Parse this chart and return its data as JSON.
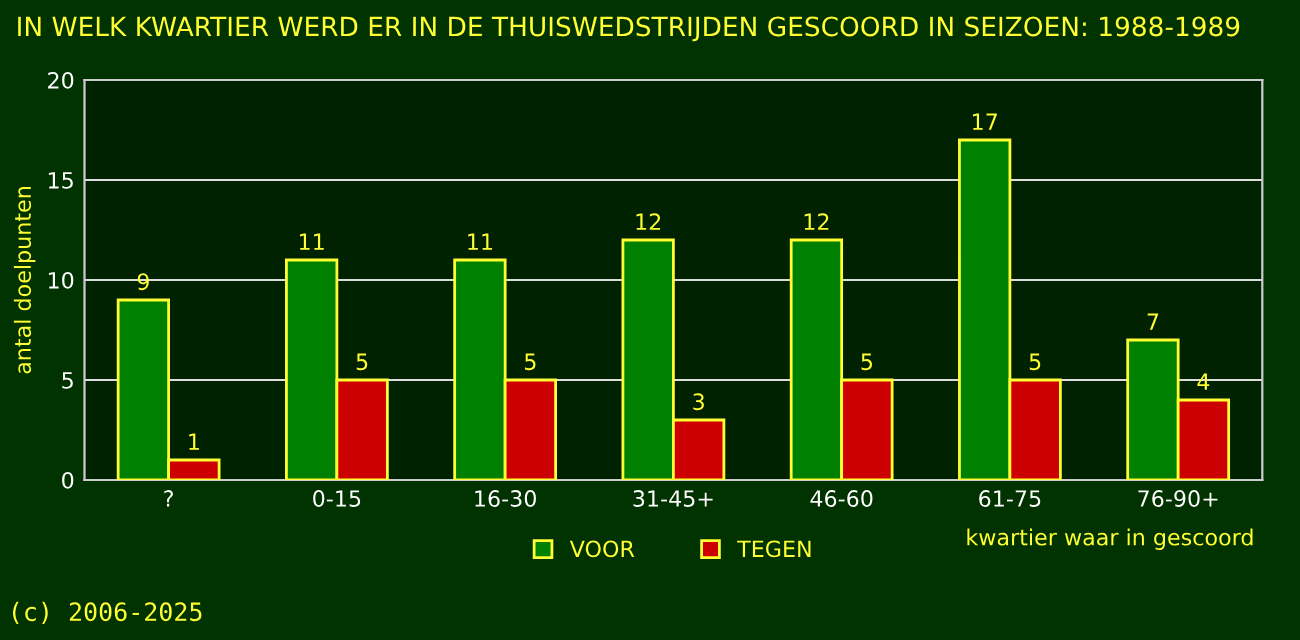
{
  "chart_data": {
    "type": "bar",
    "title": "IN WELK KWARTIER WERD ER IN DE THUISWEDSTRIJDEN GESCOORD IN SEIZOEN: 1988-1989",
    "categories": [
      "?",
      "0-15",
      "16-30",
      "31-45+",
      "46-60",
      "61-75",
      "76-90+"
    ],
    "series": [
      {
        "name": "VOOR",
        "color": "#008000",
        "values": [
          9,
          11,
          11,
          12,
          12,
          17,
          7
        ]
      },
      {
        "name": "TEGEN",
        "color": "#cc0000",
        "values": [
          1,
          5,
          5,
          3,
          5,
          5,
          4
        ]
      }
    ],
    "ylim": [
      0,
      20
    ],
    "yticks": [
      0,
      5,
      10,
      15,
      20
    ],
    "grid": "y",
    "legend": "bottom",
    "data_labels": true,
    "xlabel": "kwartier waar in gescoord",
    "ylabel": "antal doelpunten",
    "annotations": [
      "(c) 2006-2025"
    ]
  }
}
